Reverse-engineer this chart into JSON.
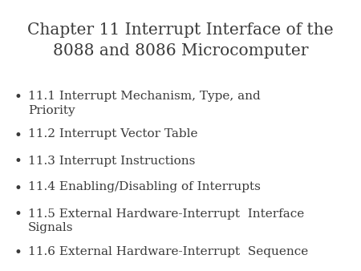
{
  "title_line1": "Chapter 11 Interrupt Interface of the",
  "title_line2": "8088 and 8086 Microcomputer",
  "bullet_items": [
    "11.1 Interrupt Mechanism, Type, and\nPriority",
    "11.2 Interrupt Vector Table",
    "11.3 Interrupt Instructions",
    "11.4 Enabling/Disabling of Interrupts",
    "11.5 External Hardware-Interrupt  Interface\nSignals",
    "11.6 External Hardware-Interrupt  Sequence"
  ],
  "background_color": "#ffffff",
  "text_color": "#3a3a3a",
  "title_fontsize": 14.5,
  "bullet_fontsize": 11.0,
  "font_family": "DejaVu Serif"
}
